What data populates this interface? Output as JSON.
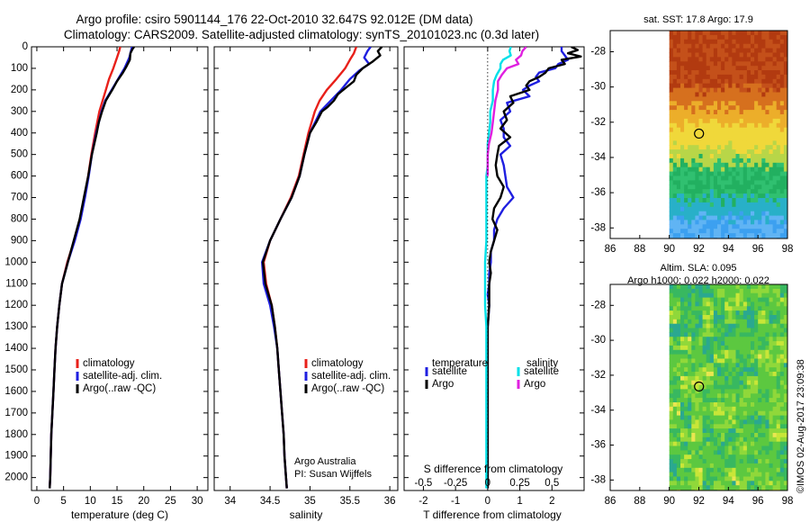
{
  "header": {
    "line1": "Argo profile: csiro 5901144_176 22-Oct-2010 32.647S 92.012E (DM data)",
    "line2": "Climatology: CARS2009. Satellite-adjusted climatology: synTS_20101023.nc (0.3d later)"
  },
  "credit": {
    "org": "Argo Australia",
    "pi": "PI: Susan Wijffels"
  },
  "stamp": "©IMOS 02-Aug-2017 23:09:38",
  "colors": {
    "climatology": "#e8201a",
    "satellite": "#1f1fe0",
    "argo": "#000000",
    "s_satellite": "#00e0e8",
    "s_argo": "#e020e0"
  },
  "depth_ticks": [
    0,
    100,
    200,
    300,
    400,
    500,
    600,
    700,
    800,
    900,
    1000,
    1100,
    1200,
    1300,
    1400,
    1500,
    1600,
    1700,
    1800,
    1900,
    2000
  ],
  "chart_data": [
    {
      "id": "temperature",
      "type": "line",
      "xlabel": "temperature (deg C)",
      "xlim": [
        -1,
        32
      ],
      "ylim": [
        0,
        2060
      ],
      "xticks": [
        0,
        5,
        10,
        15,
        20,
        25,
        30
      ],
      "legend": [
        "climatology",
        "satellite-adj. clim.",
        "Argo(..raw -QC)"
      ],
      "series": [
        {
          "name": "climatology",
          "color": "#e8201a",
          "depth": [
            0,
            20,
            50,
            100,
            150,
            200,
            250,
            300,
            400,
            500,
            600,
            700,
            800,
            900,
            1000,
            1100,
            1200,
            1300,
            1400,
            1500,
            1600,
            1700,
            1800,
            1900,
            2000,
            2050
          ],
          "values": [
            15.6,
            15.4,
            15.0,
            14.3,
            13.5,
            12.9,
            12.3,
            11.7,
            10.9,
            10.2,
            9.6,
            8.9,
            8.1,
            7.0,
            5.7,
            4.7,
            4.2,
            3.8,
            3.5,
            3.3,
            3.1,
            2.9,
            2.7,
            2.6,
            2.5,
            2.4
          ]
        },
        {
          "name": "satellite-adj. clim.",
          "color": "#1f1fe0",
          "depth": [
            0,
            20,
            50,
            100,
            150,
            200,
            250,
            300,
            400,
            500,
            600,
            700,
            800,
            900,
            1000,
            1100,
            1200,
            1300,
            1400,
            1500,
            1600,
            1700,
            1800,
            1900,
            2000,
            2050
          ],
          "values": [
            17.8,
            17.6,
            17.3,
            16.4,
            15.2,
            14.0,
            12.8,
            12.1,
            11.1,
            10.3,
            9.7,
            9.0,
            8.2,
            7.1,
            5.8,
            4.7,
            4.2,
            3.8,
            3.5,
            3.3,
            3.1,
            2.9,
            2.7,
            2.6,
            2.5,
            2.4
          ]
        },
        {
          "name": "Argo(..raw -QC)",
          "color": "#000000",
          "depth": [
            0,
            10,
            30,
            60,
            90,
            120,
            160,
            200,
            250,
            300,
            350,
            400,
            500,
            600,
            700,
            800,
            900,
            1000,
            1100,
            1200,
            1300,
            1400,
            1500,
            1600,
            1700,
            1800,
            1900,
            2000,
            2050
          ],
          "values": [
            18.2,
            17.9,
            17.5,
            17.4,
            16.8,
            16.1,
            15.0,
            14.1,
            12.9,
            12.2,
            11.6,
            11.2,
            10.3,
            9.6,
            8.8,
            8.0,
            6.9,
            5.8,
            4.7,
            4.2,
            3.8,
            3.5,
            3.3,
            3.1,
            2.9,
            2.7,
            2.6,
            2.5,
            2.4
          ]
        }
      ]
    },
    {
      "id": "salinity",
      "type": "line",
      "xlabel": "salinity",
      "xlim": [
        33.8,
        36.1
      ],
      "ylim": [
        0,
        2060
      ],
      "xticks": [
        34,
        34.5,
        35,
        35.5,
        36
      ],
      "legend": [
        "climatology",
        "satellite-adj. clim.",
        "Argo(..raw -QC)"
      ],
      "series": [
        {
          "name": "climatology",
          "color": "#e8201a",
          "depth": [
            0,
            30,
            60,
            100,
            150,
            200,
            250,
            300,
            400,
            500,
            600,
            700,
            800,
            900,
            1000,
            1100,
            1200,
            1300,
            1400,
            1500,
            1600,
            1700,
            1800,
            1900,
            2000,
            2050
          ],
          "values": [
            35.58,
            35.55,
            35.5,
            35.44,
            35.33,
            35.21,
            35.12,
            35.06,
            34.98,
            34.92,
            34.86,
            34.76,
            34.63,
            34.5,
            34.42,
            34.45,
            34.52,
            34.56,
            34.59,
            34.61,
            34.63,
            34.65,
            34.67,
            34.68,
            34.7,
            34.71
          ]
        },
        {
          "name": "satellite-adj. clim.",
          "color": "#1f1fe0",
          "depth": [
            0,
            20,
            50,
            80,
            110,
            150,
            200,
            250,
            300,
            400,
            500,
            600,
            700,
            800,
            900,
            1000,
            1100,
            1200,
            1300,
            1400,
            1500,
            1600,
            1700,
            1800,
            1900,
            2000,
            2050
          ],
          "values": [
            35.76,
            35.72,
            35.68,
            35.74,
            35.62,
            35.5,
            35.39,
            35.26,
            35.13,
            35.0,
            34.93,
            34.87,
            34.77,
            34.63,
            34.5,
            34.4,
            34.42,
            34.5,
            34.55,
            34.59,
            34.61,
            34.63,
            34.65,
            34.67,
            34.68,
            34.7,
            34.71
          ]
        },
        {
          "name": "Argo(..raw -QC)",
          "color": "#000000",
          "depth": [
            0,
            20,
            40,
            70,
            100,
            130,
            160,
            190,
            220,
            250,
            280,
            300,
            350,
            400,
            500,
            600,
            700,
            800,
            900,
            1000,
            1100,
            1200,
            1300,
            1400,
            1500,
            1600,
            1700,
            1800,
            1900,
            2000,
            2050
          ],
          "values": [
            35.9,
            35.85,
            35.88,
            35.78,
            35.66,
            35.58,
            35.55,
            35.45,
            35.35,
            35.3,
            35.22,
            35.15,
            35.08,
            35.0,
            34.93,
            34.87,
            34.77,
            34.63,
            34.5,
            34.41,
            34.44,
            34.52,
            34.56,
            34.59,
            34.61,
            34.63,
            34.65,
            34.67,
            34.68,
            34.7,
            34.71
          ]
        }
      ]
    },
    {
      "id": "differences",
      "type": "line",
      "xlabel": "T difference from climatology",
      "xlabel_top": "S difference from climatology",
      "xlim": [
        -2.6,
        3.0
      ],
      "ylim": [
        0,
        2060
      ],
      "xticks": [
        -2,
        -1,
        0,
        1,
        2
      ],
      "xticks_s": [
        -0.5,
        -0.25,
        0,
        0.25,
        0.5
      ],
      "s_scale": 4,
      "legend_t_title": "temperature",
      "legend_s_title": "salinity",
      "legend": [
        "satellite",
        "Argo",
        "satellite",
        "Argo"
      ],
      "series": [
        {
          "name": "temperature satellite",
          "color": "#1f1fe0",
          "depth": [
            0,
            20,
            40,
            60,
            80,
            100,
            120,
            140,
            160,
            180,
            200,
            230,
            260,
            300,
            340,
            380,
            420,
            460,
            500,
            550,
            600,
            650,
            700,
            750,
            800,
            850,
            900,
            950,
            1000,
            1050,
            1100,
            1150,
            1200,
            1300,
            1400,
            1500,
            1600,
            1700,
            1800,
            1900,
            2000,
            2050
          ],
          "values": [
            2.3,
            2.3,
            2.4,
            2.5,
            2.2,
            2.1,
            1.6,
            1.5,
            1.6,
            1.3,
            1.1,
            1.3,
            0.6,
            0.7,
            0.4,
            0.5,
            0.5,
            0.7,
            0.4,
            0.5,
            0.55,
            0.6,
            0.8,
            0.5,
            0.3,
            0.2,
            0.2,
            0.1,
            0.1,
            0.05,
            0.05,
            0.0,
            0.05,
            0.0,
            0.0,
            0.0,
            0.0,
            0.0,
            0.0,
            0.0,
            0.0,
            0.0
          ]
        },
        {
          "name": "temperature Argo",
          "color": "#000000",
          "depth": [
            0,
            15,
            30,
            45,
            60,
            80,
            100,
            120,
            140,
            160,
            180,
            200,
            230,
            260,
            300,
            340,
            380,
            420,
            460,
            500,
            550,
            600,
            650,
            700,
            750,
            800,
            850,
            900,
            950,
            1000,
            1050,
            1100,
            1200,
            1300,
            1400,
            1500,
            1600,
            1700,
            1800,
            1900,
            2000,
            2050
          ],
          "values": [
            2.6,
            2.8,
            2.5,
            2.9,
            2.3,
            2.4,
            1.9,
            1.8,
            1.6,
            1.3,
            1.2,
            1.3,
            0.7,
            0.8,
            0.5,
            0.6,
            0.4,
            0.7,
            0.35,
            0.3,
            0.25,
            0.3,
            0.5,
            0.4,
            0.2,
            0.15,
            0.3,
            0.2,
            0.1,
            0.05,
            0.1,
            0.05,
            0.05,
            0.0,
            0.0,
            0.0,
            0.0,
            0.0,
            0.0,
            0.0,
            0.0,
            0.0
          ]
        },
        {
          "name": "salinity satellite",
          "color": "#00e0e8",
          "depth": [
            0,
            20,
            40,
            60,
            80,
            100,
            130,
            160,
            200,
            250,
            300,
            350,
            400,
            450,
            500,
            550,
            600,
            700,
            800,
            900,
            1000,
            1100,
            1200,
            1300,
            1400,
            1500,
            1600,
            1700,
            1800,
            1900,
            2000,
            2050
          ],
          "values": [
            0.18,
            0.17,
            0.18,
            0.12,
            0.1,
            0.1,
            0.07,
            0.05,
            0.04,
            0.04,
            0.02,
            0.02,
            0.01,
            0.0,
            0.0,
            0.0,
            -0.01,
            -0.01,
            -0.01,
            -0.01,
            -0.02,
            -0.02,
            -0.02,
            -0.01,
            -0.01,
            -0.01,
            -0.01,
            -0.01,
            -0.01,
            -0.01,
            -0.01,
            -0.01
          ]
        },
        {
          "name": "salinity Argo",
          "color": "#e020e0",
          "depth": [
            0,
            20,
            40,
            60,
            80,
            100,
            130,
            160,
            200,
            250,
            300,
            350,
            400,
            450,
            500,
            550,
            600
          ],
          "values": [
            0.3,
            0.27,
            0.26,
            0.22,
            0.24,
            0.15,
            0.11,
            0.08,
            0.08,
            0.06,
            0.05,
            0.04,
            0.03,
            0.01,
            0.0,
            0.0,
            0.0
          ]
        }
      ]
    },
    {
      "id": "sst_map",
      "type": "heatmap",
      "title": "sat. SST: 17.8 Argo: 17.9",
      "xticks": [
        86,
        88,
        90,
        92,
        94,
        96,
        98
      ],
      "yticks": [
        -28,
        -30,
        -32,
        -34,
        -36,
        -38
      ],
      "xlim": [
        86,
        98
      ],
      "ylim": [
        -38.6,
        -26.8
      ],
      "data_xlim": [
        90,
        98
      ],
      "marker": {
        "lon": 92.012,
        "lat": -32.647
      }
    },
    {
      "id": "sla_map",
      "type": "heatmap",
      "title": "Altim. SLA: 0.095",
      "subtitle": "Argo h1000: 0.022 h2000: 0.022",
      "xticks": [
        86,
        88,
        90,
        92,
        94,
        96,
        98
      ],
      "yticks": [
        -28,
        -30,
        -32,
        -34,
        -36,
        -38
      ],
      "xlim": [
        86,
        98
      ],
      "ylim": [
        -38.6,
        -26.8
      ],
      "data_xlim": [
        90,
        98
      ],
      "marker": {
        "lon": 92.012,
        "lat": -32.647
      }
    }
  ]
}
